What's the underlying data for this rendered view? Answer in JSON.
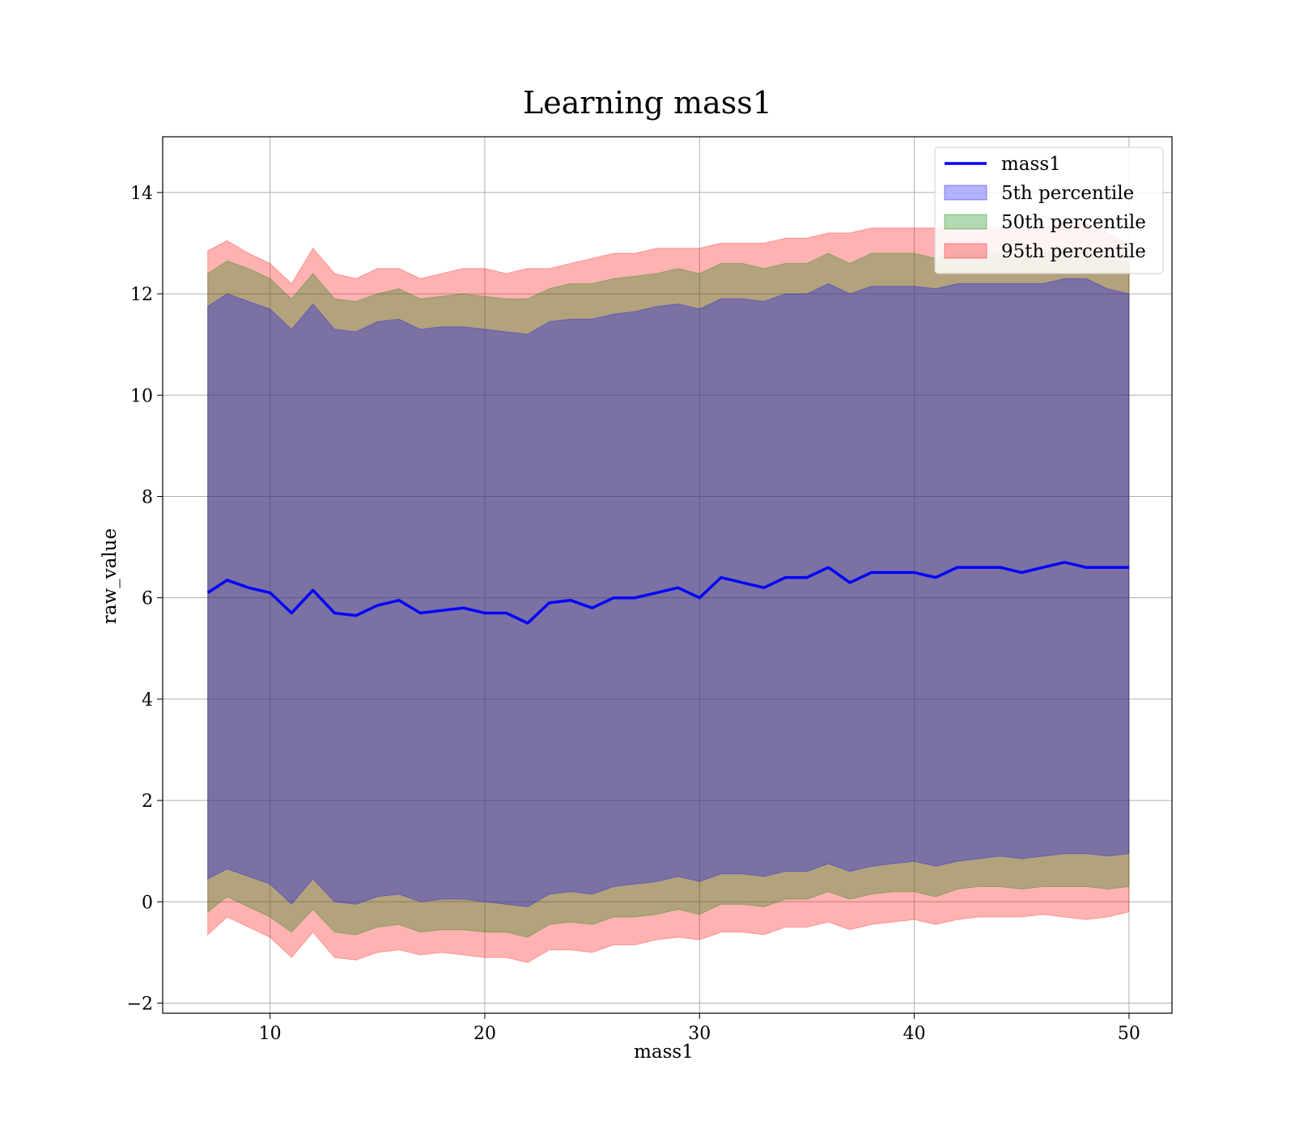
{
  "chart_data": {
    "type": "line",
    "title": "Learning mass1",
    "xlabel": "mass1",
    "ylabel": "raw_value",
    "xlim": [
      5,
      52
    ],
    "ylim": [
      -2.2,
      15.1
    ],
    "xticks": [
      10,
      20,
      30,
      40,
      50
    ],
    "yticks": [
      -2,
      0,
      2,
      4,
      6,
      8,
      10,
      12,
      14
    ],
    "grid": true,
    "legend_position": "top-right",
    "legend": [
      {
        "label": "mass1",
        "kind": "line",
        "color": "#0000ff"
      },
      {
        "label": "5th percentile",
        "kind": "band",
        "color": "#0000ff"
      },
      {
        "label": "50th percentile",
        "kind": "band",
        "color": "#008000"
      },
      {
        "label": "95th percentile",
        "kind": "band",
        "color": "#ff0000"
      }
    ],
    "x": [
      7.1,
      8.0,
      9.0,
      10.0,
      11.0,
      12.0,
      13.0,
      14.0,
      15.0,
      16.0,
      17.0,
      18.0,
      19.0,
      20.0,
      21.0,
      22.0,
      23.0,
      24.0,
      25.0,
      26.0,
      27.0,
      28.0,
      29.0,
      30.0,
      31.0,
      32.0,
      33.0,
      34.0,
      35.0,
      36.0,
      37.0,
      38.0,
      39.0,
      40.0,
      41.0,
      42.0,
      43.0,
      44.0,
      45.0,
      46.0,
      47.0,
      48.0,
      49.0,
      50.0
    ],
    "series": [
      {
        "name": "mass1",
        "color": "#0000ff",
        "values": [
          6.1,
          6.35,
          6.2,
          6.1,
          5.7,
          6.15,
          5.7,
          5.65,
          5.85,
          5.95,
          5.7,
          5.75,
          5.8,
          5.7,
          5.7,
          5.5,
          5.9,
          5.95,
          5.8,
          6.0,
          6.0,
          6.1,
          6.2,
          6.0,
          6.4,
          6.3,
          6.2,
          6.4,
          6.4,
          6.6,
          6.3,
          6.5,
          6.5,
          6.5,
          6.4,
          6.6,
          6.6,
          6.6,
          6.5,
          6.6,
          6.7,
          6.6,
          6.6,
          6.6
        ]
      }
    ],
    "bands": [
      {
        "name": "95th percentile",
        "color": "#ff0000",
        "upper": [
          12.85,
          13.05,
          12.8,
          12.6,
          12.2,
          12.9,
          12.4,
          12.3,
          12.5,
          12.5,
          12.3,
          12.4,
          12.5,
          12.5,
          12.4,
          12.5,
          12.5,
          12.6,
          12.7,
          12.8,
          12.8,
          12.9,
          12.9,
          12.9,
          13.0,
          13.0,
          13.0,
          13.1,
          13.1,
          13.2,
          13.2,
          13.3,
          13.3,
          13.3,
          13.3,
          13.3,
          13.3,
          13.3,
          13.3,
          13.3,
          13.4,
          13.4,
          13.2,
          13.0
        ],
        "lower": [
          -0.65,
          -0.3,
          -0.5,
          -0.7,
          -1.1,
          -0.6,
          -1.1,
          -1.15,
          -1.0,
          -0.95,
          -1.05,
          -1.0,
          -1.05,
          -1.1,
          -1.1,
          -1.2,
          -0.95,
          -0.95,
          -1.0,
          -0.85,
          -0.85,
          -0.75,
          -0.7,
          -0.75,
          -0.6,
          -0.6,
          -0.65,
          -0.5,
          -0.5,
          -0.4,
          -0.55,
          -0.45,
          -0.4,
          -0.35,
          -0.45,
          -0.35,
          -0.3,
          -0.3,
          -0.3,
          -0.25,
          -0.3,
          -0.35,
          -0.3,
          -0.2
        ]
      },
      {
        "name": "50th percentile",
        "color": "#008000",
        "upper": [
          12.4,
          12.65,
          12.5,
          12.3,
          11.9,
          12.4,
          11.9,
          11.85,
          12.0,
          12.1,
          11.9,
          11.95,
          12.0,
          11.95,
          11.9,
          11.9,
          12.1,
          12.2,
          12.2,
          12.3,
          12.35,
          12.4,
          12.5,
          12.4,
          12.6,
          12.6,
          12.5,
          12.6,
          12.6,
          12.8,
          12.6,
          12.8,
          12.8,
          12.8,
          12.7,
          12.8,
          12.8,
          12.8,
          12.8,
          12.8,
          12.9,
          12.9,
          12.7,
          12.6
        ],
        "lower": [
          -0.2,
          0.1,
          -0.1,
          -0.3,
          -0.6,
          -0.15,
          -0.6,
          -0.65,
          -0.5,
          -0.45,
          -0.6,
          -0.55,
          -0.55,
          -0.6,
          -0.6,
          -0.7,
          -0.45,
          -0.4,
          -0.45,
          -0.3,
          -0.3,
          -0.25,
          -0.15,
          -0.25,
          -0.05,
          -0.05,
          -0.1,
          0.05,
          0.05,
          0.2,
          0.05,
          0.15,
          0.2,
          0.2,
          0.1,
          0.25,
          0.3,
          0.3,
          0.25,
          0.3,
          0.3,
          0.3,
          0.25,
          0.3
        ]
      },
      {
        "name": "5th percentile",
        "color": "#0000ff",
        "upper": [
          11.75,
          12.0,
          11.85,
          11.7,
          11.3,
          11.8,
          11.3,
          11.25,
          11.45,
          11.5,
          11.3,
          11.35,
          11.35,
          11.3,
          11.25,
          11.2,
          11.45,
          11.5,
          11.5,
          11.6,
          11.65,
          11.75,
          11.8,
          11.7,
          11.9,
          11.9,
          11.85,
          12.0,
          12.0,
          12.2,
          12.0,
          12.15,
          12.15,
          12.15,
          12.1,
          12.2,
          12.2,
          12.2,
          12.2,
          12.2,
          12.3,
          12.3,
          12.1,
          12.0
        ],
        "lower": [
          0.45,
          0.65,
          0.5,
          0.35,
          -0.05,
          0.45,
          0.0,
          -0.05,
          0.1,
          0.15,
          0.0,
          0.05,
          0.05,
          0.0,
          -0.05,
          -0.1,
          0.15,
          0.2,
          0.15,
          0.3,
          0.35,
          0.4,
          0.5,
          0.4,
          0.55,
          0.55,
          0.5,
          0.6,
          0.6,
          0.75,
          0.6,
          0.7,
          0.75,
          0.8,
          0.7,
          0.8,
          0.85,
          0.9,
          0.85,
          0.9,
          0.95,
          0.95,
          0.9,
          0.95
        ]
      }
    ]
  }
}
